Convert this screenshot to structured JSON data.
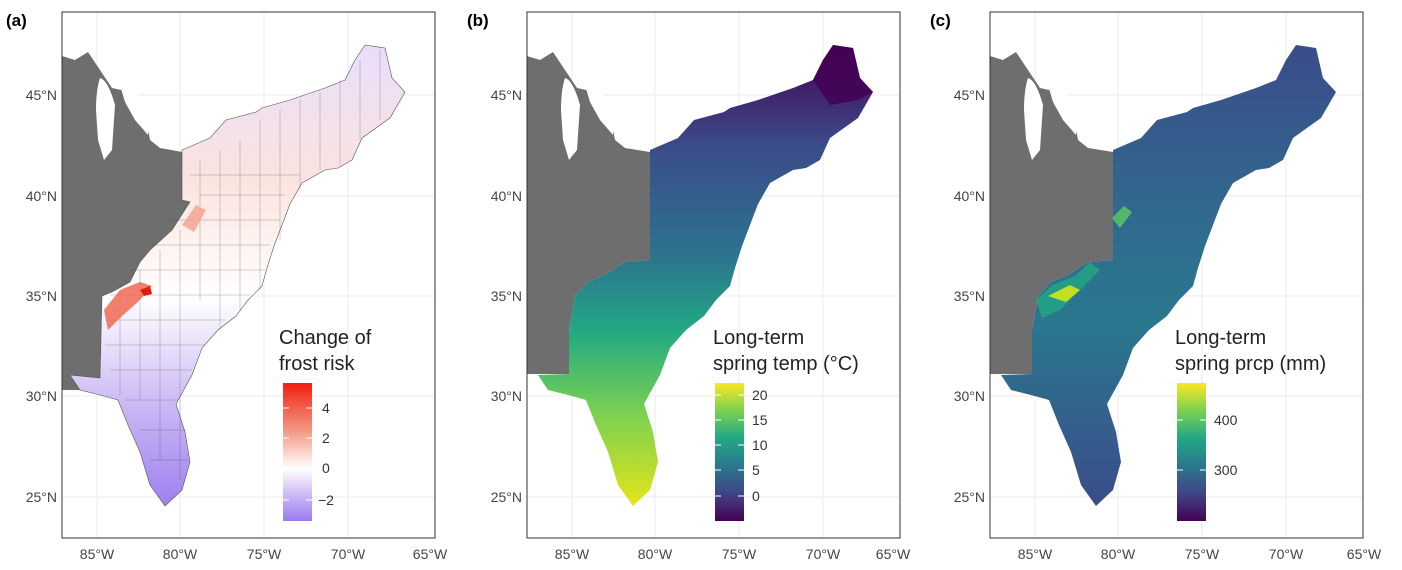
{
  "panels": [
    {
      "tag": "(a)",
      "legend": {
        "title_line1": "Change of",
        "title_line2": "frost risk",
        "ticks": [
          "4",
          "2",
          "0",
          "−2"
        ],
        "colors": [
          "#f21f10",
          "#f39a86",
          "#ffffff",
          "#b8a4f2",
          "#9a7af0"
        ]
      },
      "fill_style": "diverging"
    },
    {
      "tag": "(b)",
      "legend": {
        "title_line1": "Long-term",
        "title_line2": "spring temp (°C)",
        "ticks": [
          "20",
          "15",
          "10",
          "5",
          "0"
        ],
        "colors": [
          "#fde725",
          "#7ad151",
          "#22a884",
          "#2a788e",
          "#414487",
          "#440154"
        ]
      },
      "fill_style": "temp"
    },
    {
      "tag": "(c)",
      "legend": {
        "title_line1": "Long-term",
        "title_line2": "spring prcp (mm)",
        "ticks": [
          "400",
          "300"
        ],
        "colors": [
          "#fde725",
          "#7ad151",
          "#22a884",
          "#2a788e",
          "#414487",
          "#440154"
        ]
      },
      "fill_style": "prcp"
    }
  ],
  "axes": {
    "x_ticks": [
      "85°W",
      "80°W",
      "75°W",
      "70°W",
      "65°W"
    ],
    "y_ticks": [
      "45°N",
      "40°N",
      "35°N",
      "30°N",
      "25°N"
    ]
  },
  "colors": {
    "masked_region": "#6e6e6e",
    "panel_border": "#333333",
    "grid": "#ebebeb"
  }
}
